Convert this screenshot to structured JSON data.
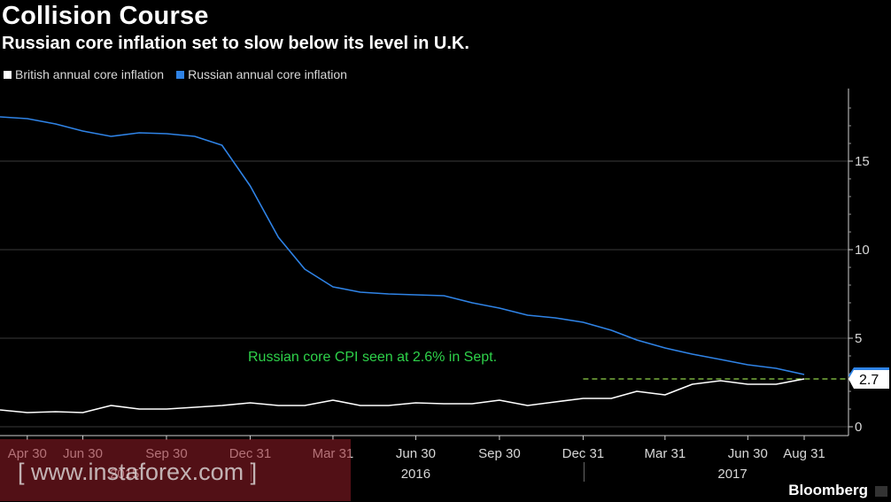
{
  "header": {
    "title": "Collision Course",
    "subtitle": "Russian core inflation set to slow below its level in U.K."
  },
  "legend": {
    "items": [
      {
        "label": "British annual core inflation",
        "color": "#ffffff"
      },
      {
        "label": "Russian annual core inflation",
        "color": "#2f83e6"
      }
    ]
  },
  "footer": {
    "brand": "Bloomberg",
    "watermark": "[ www.instaforex.com ]"
  },
  "chart_data": {
    "type": "line",
    "title": "Collision Course",
    "subtitle": "Russian core inflation set to slow below its level in U.K.",
    "xlabel": "",
    "ylabel": "",
    "ylim": [
      -1,
      19
    ],
    "y_ticks": [
      0,
      5,
      10,
      15
    ],
    "grid": true,
    "legend_position": "top-left",
    "x": [
      "2015-03-31",
      "2015-04-30",
      "2015-05-31",
      "2015-06-30",
      "2015-07-31",
      "2015-08-31",
      "2015-09-30",
      "2015-10-31",
      "2015-11-30",
      "2015-12-31",
      "2016-01-31",
      "2016-02-29",
      "2016-03-31",
      "2016-04-30",
      "2016-05-31",
      "2016-06-30",
      "2016-07-31",
      "2016-08-31",
      "2016-09-30",
      "2016-10-31",
      "2016-11-30",
      "2016-12-31",
      "2017-01-31",
      "2017-02-28",
      "2017-03-31",
      "2017-04-30",
      "2017-05-31",
      "2017-06-30",
      "2017-07-31",
      "2017-08-31"
    ],
    "x_tick_labels": [
      "Apr 30",
      "Jun 30",
      "Sep 30",
      "Dec 31",
      "Mar 31",
      "Jun 30",
      "Sep 30",
      "Dec 31",
      "Mar 31",
      "Jun 30",
      "Aug 31"
    ],
    "year_labels": [
      "2015",
      "2016",
      "2017"
    ],
    "series": [
      {
        "name": "British annual core inflation",
        "color": "#ffffff",
        "values": [
          0.95,
          0.8,
          0.85,
          0.8,
          1.2,
          1.0,
          1.0,
          1.1,
          1.2,
          1.35,
          1.2,
          1.2,
          1.5,
          1.2,
          1.2,
          1.35,
          1.3,
          1.3,
          1.5,
          1.2,
          1.4,
          1.6,
          1.6,
          2.0,
          1.8,
          2.4,
          2.6,
          2.4,
          2.4,
          2.7
        ]
      },
      {
        "name": "Russian annual core inflation",
        "color": "#2f83e6",
        "values": [
          17.5,
          17.4,
          17.1,
          16.7,
          16.4,
          16.6,
          16.55,
          16.4,
          15.9,
          13.6,
          10.7,
          8.9,
          7.9,
          7.6,
          7.5,
          7.45,
          7.4,
          7.0,
          6.7,
          6.3,
          6.15,
          5.9,
          5.45,
          4.9,
          4.45,
          4.1,
          3.8,
          3.5,
          3.3,
          2.95
        ]
      }
    ],
    "last_value_label": "2.7",
    "forecast": {
      "value": 2.7,
      "from": "2016-12-31",
      "to": "2017-09-30"
    },
    "annotations": [
      {
        "text": "Russian core CPI seen at 2.6% in Sept.",
        "color": "#2ed24a"
      }
    ]
  }
}
